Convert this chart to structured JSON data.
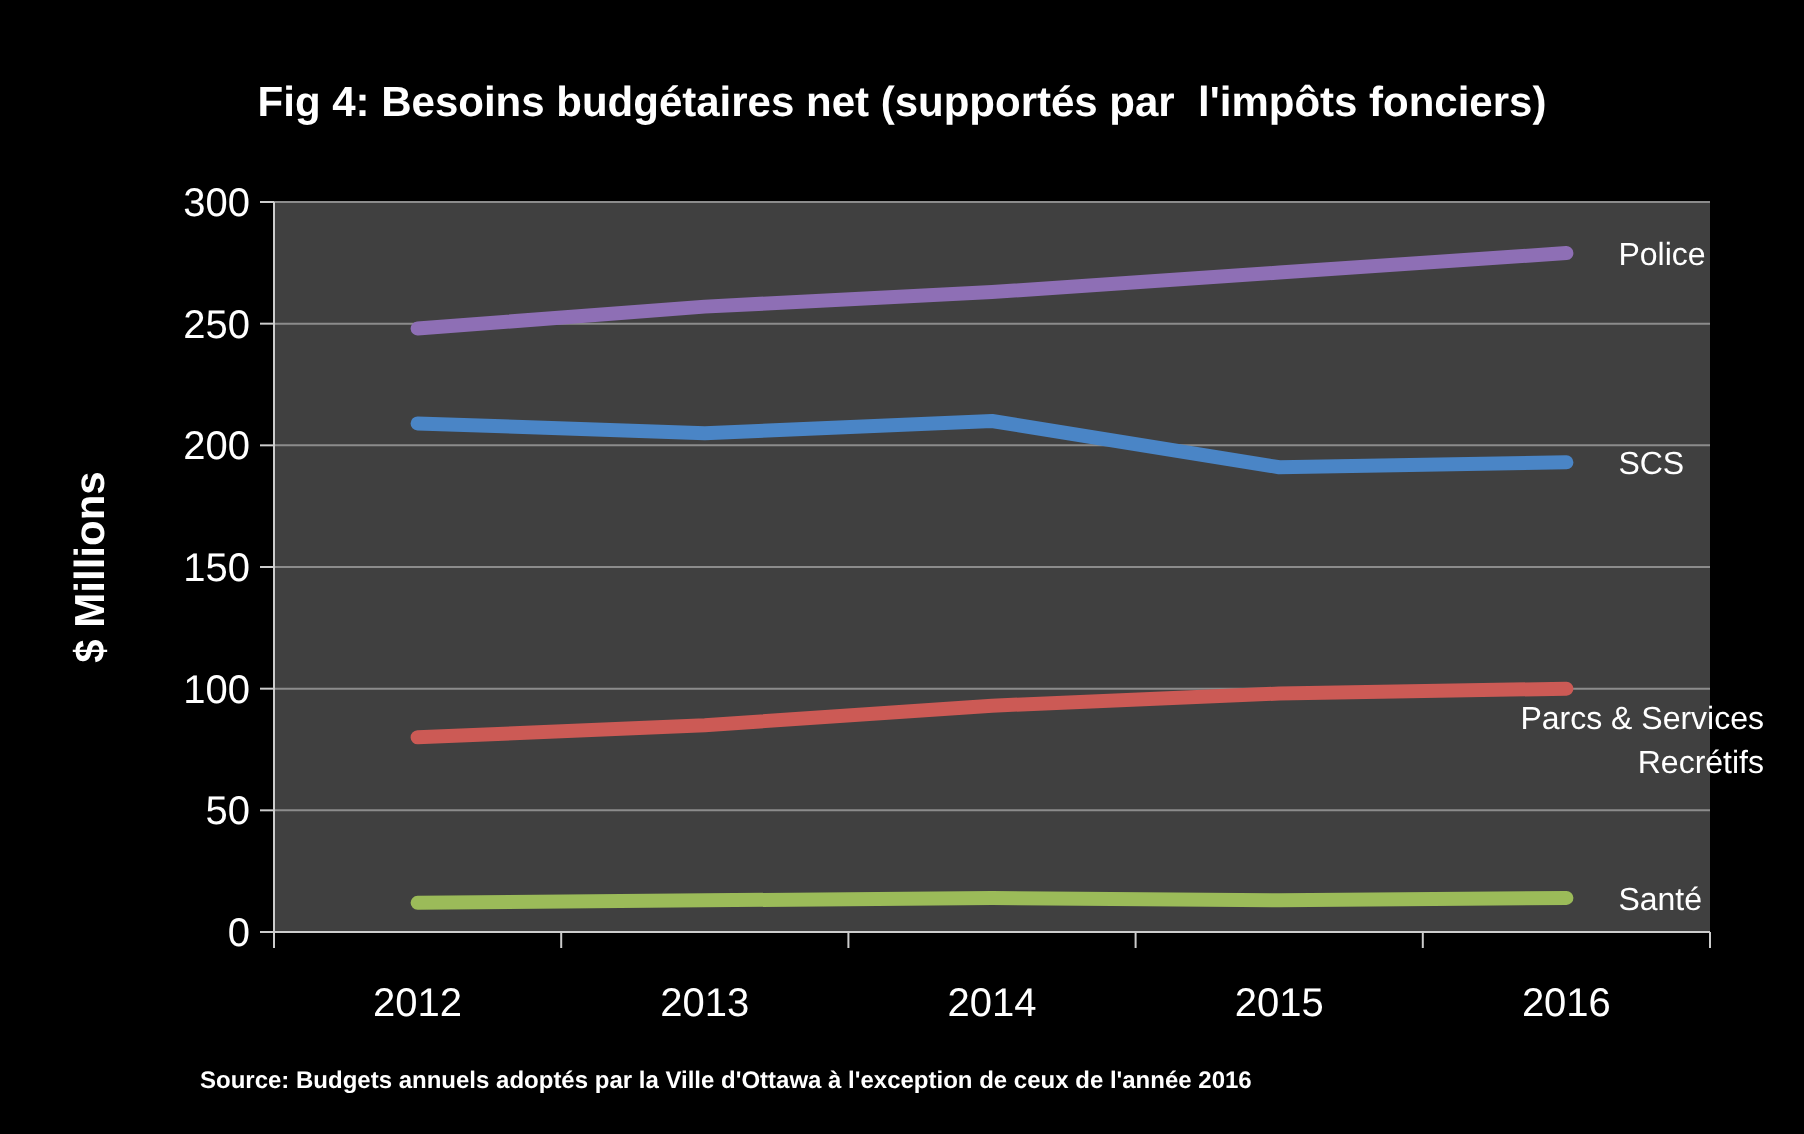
{
  "chart_data": {
    "type": "line",
    "title": "Fig 4: Besoins budgétaires net (supportés par  l'impôts fonciers)",
    "ylabel": "$ Millions",
    "categories": [
      "2012",
      "2013",
      "2014",
      "2015",
      "2016"
    ],
    "ylim": [
      0,
      300
    ],
    "yticks": [
      0,
      50,
      100,
      150,
      200,
      250,
      300
    ],
    "grid": "y",
    "marker": "none",
    "line_style": "solid",
    "series": [
      {
        "name": "Police",
        "color": "#8e6fb5",
        "values": [
          248,
          257,
          263,
          271,
          279
        ]
      },
      {
        "name": "SCS",
        "color": "#4a85c6",
        "values": [
          209,
          205,
          210,
          191,
          193
        ]
      },
      {
        "name": "Parcs & Services Recrétifs",
        "color": "#cc5a55",
        "values": [
          80,
          85,
          93,
          98,
          100
        ]
      },
      {
        "name": "Santé",
        "color": "#9bbb59",
        "values": [
          12,
          13,
          14,
          13,
          14
        ]
      }
    ],
    "annotations": [
      "Source: Budgets annuels adoptés par la Ville d'Ottawa à l'exception de ceux de l'année 2016"
    ]
  }
}
